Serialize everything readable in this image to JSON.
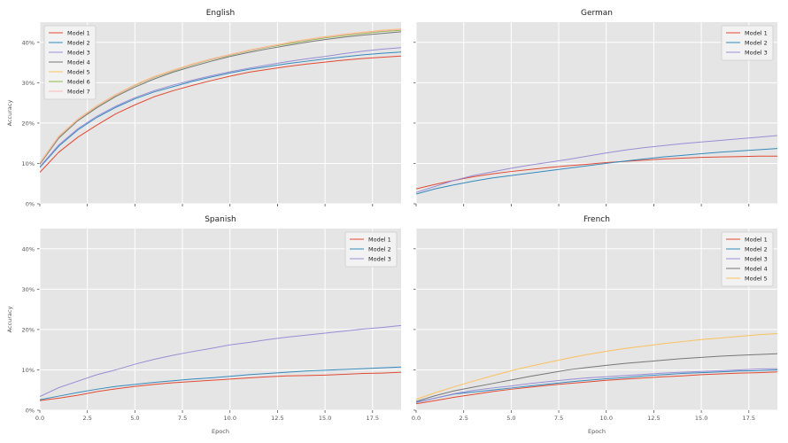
{
  "figure": {
    "xlabel": "Epoch",
    "ylabel": "Accuracy"
  },
  "colors": {
    "Model 1": "#E24A33",
    "Model 2": "#348ABD",
    "Model 3": "#988ED5",
    "Model 4": "#777777",
    "Model 5": "#FBC15E",
    "Model 6": "#8EBA42",
    "Model 7": "#FFB5B8",
    "panel_bg": "#E5E5E5",
    "grid": "#FFFFFF"
  },
  "chart_data": [
    {
      "type": "line",
      "title": "English",
      "xlim": [
        0,
        19
      ],
      "ylim": [
        0,
        45
      ],
      "xticks": [
        "0.0",
        "2.5",
        "5.0",
        "7.5",
        "10.0",
        "12.5",
        "15.0",
        "17.5"
      ],
      "yticks": [
        "0%",
        "10%",
        "20%",
        "30%",
        "40%"
      ],
      "show_xticklabels": false,
      "show_yticklabels": true,
      "show_xlabel": false,
      "show_ylabel": true,
      "legend": "top-left",
      "x": [
        0,
        1,
        2,
        3,
        4,
        5,
        6,
        7,
        8,
        9,
        10,
        11,
        12,
        13,
        14,
        15,
        16,
        17,
        18,
        19
      ],
      "series": [
        {
          "name": "Model 1",
          "values": [
            7.8,
            12.8,
            16.5,
            19.5,
            22.3,
            24.5,
            26.5,
            28.0,
            29.3,
            30.5,
            31.6,
            32.6,
            33.3,
            34.0,
            34.6,
            35.1,
            35.6,
            36.0,
            36.3,
            36.6
          ]
        },
        {
          "name": "Model 2",
          "values": [
            9.0,
            14.3,
            18.3,
            21.4,
            23.9,
            26.0,
            27.7,
            29.0,
            30.3,
            31.4,
            32.4,
            33.3,
            34.0,
            34.7,
            35.3,
            35.9,
            36.4,
            36.9,
            37.3,
            37.6
          ]
        },
        {
          "name": "Model 3",
          "values": [
            9.2,
            14.6,
            18.6,
            21.7,
            24.2,
            26.3,
            28.0,
            29.4,
            30.6,
            31.7,
            32.7,
            33.6,
            34.4,
            35.2,
            35.9,
            36.5,
            37.2,
            37.8,
            38.3,
            38.7
          ]
        },
        {
          "name": "Model 4",
          "values": [
            9.8,
            16.3,
            20.6,
            23.8,
            26.6,
            28.9,
            30.9,
            32.6,
            34.0,
            35.3,
            36.5,
            37.5,
            38.4,
            39.2,
            40.0,
            40.7,
            41.3,
            41.8,
            42.2,
            42.6
          ]
        },
        {
          "name": "Model 5",
          "values": [
            10.2,
            16.8,
            21.0,
            24.3,
            27.1,
            29.5,
            31.5,
            33.1,
            34.6,
            35.9,
            37.0,
            38.1,
            39.0,
            39.9,
            40.7,
            41.4,
            42.0,
            42.5,
            43.0,
            43.3
          ]
        },
        {
          "name": "Model 6",
          "values": [
            10.0,
            16.6,
            20.8,
            24.1,
            26.9,
            29.3,
            31.3,
            32.9,
            34.4,
            35.7,
            36.8,
            37.9,
            38.8,
            39.6,
            40.4,
            41.1,
            41.7,
            42.2,
            42.7,
            43.0
          ]
        },
        {
          "name": "Model 7",
          "values": [
            10.1,
            16.7,
            20.9,
            24.2,
            27.0,
            29.4,
            31.4,
            33.0,
            34.5,
            35.8,
            36.9,
            38.0,
            38.9,
            39.8,
            40.6,
            41.3,
            41.9,
            42.4,
            42.9,
            43.2
          ]
        }
      ]
    },
    {
      "type": "line",
      "title": "German",
      "xlim": [
        0,
        19
      ],
      "ylim": [
        0,
        45
      ],
      "xticks": [
        "0.0",
        "2.5",
        "5.0",
        "7.5",
        "10.0",
        "12.5",
        "15.0",
        "17.5"
      ],
      "yticks": [
        "0%",
        "10%",
        "20%",
        "30%",
        "40%"
      ],
      "show_xticklabels": false,
      "show_yticklabels": false,
      "show_xlabel": false,
      "show_ylabel": false,
      "legend": "top-right",
      "x": [
        0,
        1,
        2,
        3,
        4,
        5,
        6,
        7,
        8,
        9,
        10,
        11,
        12,
        13,
        14,
        15,
        16,
        17,
        18,
        19
      ],
      "series": [
        {
          "name": "Model 1",
          "values": [
            3.7,
            4.8,
            5.8,
            6.7,
            7.4,
            8.0,
            8.5,
            9.0,
            9.4,
            9.8,
            10.2,
            10.5,
            10.8,
            11.1,
            11.3,
            11.5,
            11.6,
            11.7,
            11.8,
            11.8
          ]
        },
        {
          "name": "Model 2",
          "values": [
            2.4,
            3.7,
            4.7,
            5.6,
            6.4,
            7.0,
            7.6,
            8.2,
            8.8,
            9.4,
            10.0,
            10.6,
            11.1,
            11.6,
            12.0,
            12.4,
            12.8,
            13.1,
            13.4,
            13.7
          ]
        },
        {
          "name": "Model 3",
          "values": [
            2.8,
            4.3,
            5.8,
            7.0,
            7.9,
            8.8,
            9.6,
            10.3,
            11.0,
            11.8,
            12.6,
            13.3,
            13.9,
            14.4,
            14.9,
            15.3,
            15.7,
            16.1,
            16.5,
            16.9
          ]
        }
      ]
    },
    {
      "type": "line",
      "title": "Spanish",
      "xlim": [
        0,
        19
      ],
      "ylim": [
        0,
        45
      ],
      "xticks": [
        "0.0",
        "2.5",
        "5.0",
        "7.5",
        "10.0",
        "12.5",
        "15.0",
        "17.5"
      ],
      "yticks": [
        "0%",
        "10%",
        "20%",
        "30%",
        "40%"
      ],
      "show_xticklabels": true,
      "show_yticklabels": true,
      "show_xlabel": true,
      "show_ylabel": true,
      "legend": "top-right",
      "x": [
        0,
        1,
        2,
        3,
        4,
        5,
        6,
        7,
        8,
        9,
        10,
        11,
        12,
        13,
        14,
        15,
        16,
        17,
        18,
        19
      ],
      "series": [
        {
          "name": "Model 1",
          "values": [
            2.4,
            3.0,
            3.7,
            4.6,
            5.3,
            5.9,
            6.4,
            6.8,
            7.1,
            7.4,
            7.7,
            8.0,
            8.3,
            8.5,
            8.6,
            8.7,
            8.9,
            9.1,
            9.2,
            9.4
          ]
        },
        {
          "name": "Model 2",
          "values": [
            2.6,
            3.5,
            4.4,
            5.2,
            5.9,
            6.4,
            6.9,
            7.3,
            7.7,
            8.0,
            8.4,
            8.8,
            9.1,
            9.4,
            9.7,
            9.9,
            10.1,
            10.3,
            10.5,
            10.7
          ]
        },
        {
          "name": "Model 3",
          "values": [
            3.4,
            5.6,
            7.2,
            8.8,
            10.0,
            11.4,
            12.6,
            13.6,
            14.5,
            15.3,
            16.2,
            16.8,
            17.5,
            18.1,
            18.6,
            19.1,
            19.6,
            20.1,
            20.5,
            21.0
          ]
        }
      ]
    },
    {
      "type": "line",
      "title": "French",
      "xlim": [
        0,
        19
      ],
      "ylim": [
        0,
        45
      ],
      "xticks": [
        "0.0",
        "2.5",
        "5.0",
        "7.5",
        "10.0",
        "12.5",
        "15.0",
        "17.5"
      ],
      "yticks": [
        "0%",
        "10%",
        "20%",
        "30%",
        "40%"
      ],
      "show_xticklabels": true,
      "show_yticklabels": false,
      "show_xlabel": true,
      "show_ylabel": false,
      "legend": "top-right",
      "x": [
        0,
        1,
        2,
        3,
        4,
        5,
        6,
        7,
        8,
        9,
        10,
        11,
        12,
        13,
        14,
        15,
        16,
        17,
        18,
        19
      ],
      "series": [
        {
          "name": "Model 1",
          "values": [
            1.6,
            2.4,
            3.2,
            3.9,
            4.6,
            5.2,
            5.7,
            6.2,
            6.6,
            7.0,
            7.4,
            7.7,
            8.0,
            8.3,
            8.5,
            8.8,
            9.0,
            9.2,
            9.3,
            9.5
          ]
        },
        {
          "name": "Model 2",
          "values": [
            2.0,
            3.0,
            4.0,
            4.5,
            5.0,
            5.5,
            6.0,
            6.5,
            7.0,
            7.4,
            7.8,
            8.1,
            8.5,
            8.8,
            9.1,
            9.3,
            9.5,
            9.7,
            9.8,
            10.0
          ]
        },
        {
          "name": "Model 3",
          "values": [
            1.9,
            3.0,
            4.1,
            4.9,
            5.5,
            6.0,
            6.6,
            7.1,
            7.6,
            8.0,
            8.3,
            8.6,
            8.9,
            9.2,
            9.4,
            9.6,
            9.8,
            10.0,
            10.2,
            10.3
          ]
        },
        {
          "name": "Model 4",
          "values": [
            2.2,
            3.6,
            4.8,
            5.7,
            6.6,
            7.5,
            8.4,
            9.2,
            10.0,
            10.6,
            11.1,
            11.6,
            12.0,
            12.4,
            12.8,
            13.1,
            13.4,
            13.6,
            13.8,
            14.0
          ]
        },
        {
          "name": "Model 5",
          "values": [
            2.7,
            4.3,
            5.8,
            7.2,
            8.5,
            9.8,
            10.9,
            11.9,
            12.9,
            13.8,
            14.6,
            15.3,
            15.9,
            16.5,
            17.0,
            17.5,
            17.9,
            18.3,
            18.7,
            19.0
          ]
        }
      ]
    }
  ]
}
